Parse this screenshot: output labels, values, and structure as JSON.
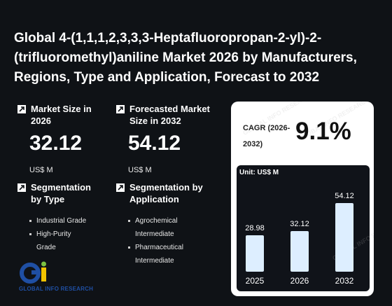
{
  "title": "Global 4-(1,1,1,2,3,3,3-Heptafluoropropan-2-yl)-2-(trifluoromethyl)aniline Market 2026 by Manufacturers, Regions, Type and Application, Forecast to 2032",
  "stats": {
    "market_size": {
      "label": "Market Size in 2026",
      "value": "32.12",
      "unit": "US$ M"
    },
    "forecast": {
      "label": "Forecasted Market Size in 2032",
      "value": "54.12",
      "unit": "US$ M"
    }
  },
  "segmentation": {
    "type": {
      "label": "Segmentation by Type",
      "items": [
        "Industrial Grade",
        "High-Purity Grade"
      ]
    },
    "application": {
      "label": "Segmentation by Application",
      "items": [
        "Agrochemical Intermediate",
        "Pharmaceutical Intermediate"
      ]
    }
  },
  "cagr": {
    "label": "CAGR (2026-2032)",
    "value": "9.1%"
  },
  "logo": {
    "text": "GLOBAL INFO RESEARCH",
    "mark": "Gi"
  },
  "watermark": "GLOBAL INFO RESEARCH",
  "chart_data": {
    "type": "bar",
    "ylabel": "Unit: US$ M",
    "categories": [
      "2025",
      "2026",
      "2032"
    ],
    "values": [
      28.98,
      32.12,
      54.12
    ],
    "value_labels": [
      "28.98",
      "32.12",
      "54.12"
    ],
    "colors": {
      "bar": "#ddeeff",
      "background": "#101319"
    }
  }
}
